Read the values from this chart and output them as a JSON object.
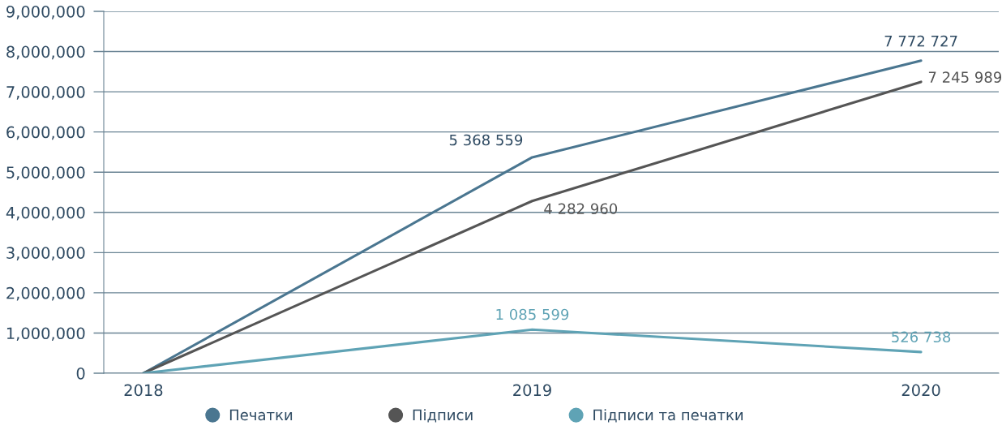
{
  "chart_data": {
    "type": "line",
    "categories": [
      "2018",
      "2019",
      "2020"
    ],
    "series": [
      {
        "name": "Печатки",
        "color": "#4a7690",
        "values": [
          0,
          5368559,
          7772727
        ],
        "value_labels": [
          null,
          "5 368 559",
          "7 772 727"
        ]
      },
      {
        "name": "Підписи",
        "color": "#555555",
        "values": [
          0,
          4282960,
          7245989
        ],
        "value_labels": [
          null,
          "4 282 960",
          "7 245 989"
        ]
      },
      {
        "name": "Підписи та печатки",
        "color": "#5fa3b5",
        "values": [
          0,
          1085599,
          526738
        ],
        "value_labels": [
          null,
          "1 085 599",
          "526 738"
        ]
      }
    ],
    "ylim": [
      0,
      9000000
    ],
    "yticks": [
      {
        "value": 0,
        "label": "0"
      },
      {
        "value": 1000000,
        "label": "1,000,000"
      },
      {
        "value": 2000000,
        "label": "2,000,000"
      },
      {
        "value": 3000000,
        "label": "3,000,000"
      },
      {
        "value": 4000000,
        "label": "4,000,000"
      },
      {
        "value": 5000000,
        "label": "5,000,000"
      },
      {
        "value": 6000000,
        "label": "6,000,000"
      },
      {
        "value": 7000000,
        "label": "7,000,000"
      },
      {
        "value": 8000000,
        "label": "8,000,000"
      },
      {
        "value": 9000000,
        "label": "9,000,000"
      }
    ],
    "grid": "y",
    "legend": "bottom",
    "marker": "none",
    "line_style": "solid"
  }
}
